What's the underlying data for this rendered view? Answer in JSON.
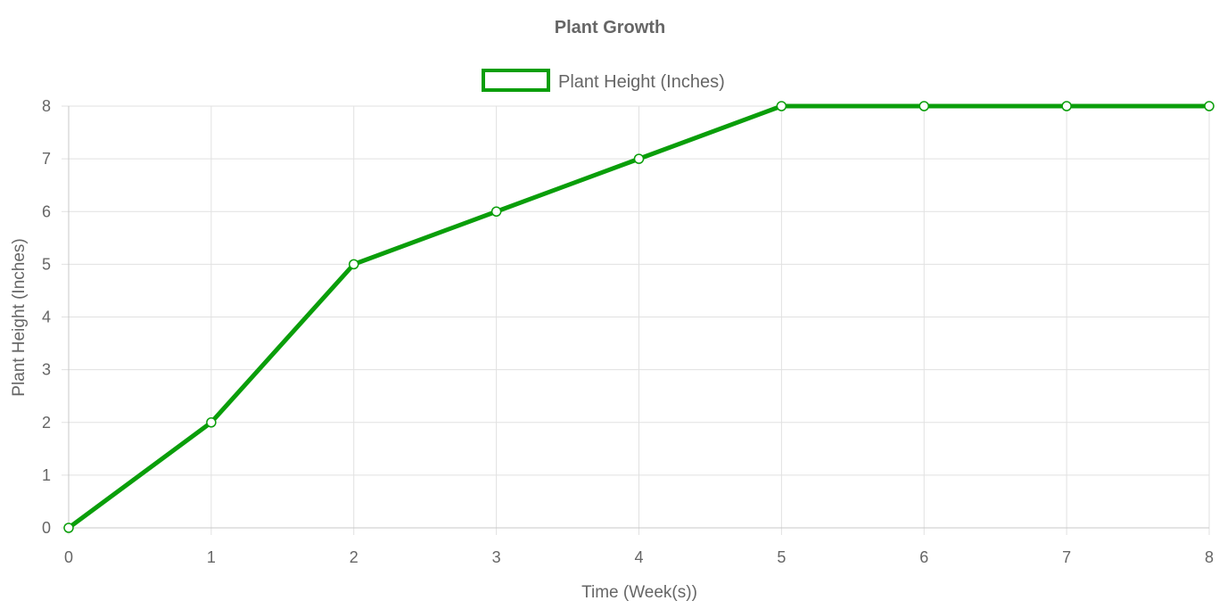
{
  "chart_data": {
    "type": "line",
    "title": "Plant Growth",
    "xlabel": "Time (Week(s))",
    "ylabel": "Plant Height (Inches)",
    "x": [
      0,
      1,
      2,
      3,
      4,
      5,
      6,
      7,
      8
    ],
    "series": [
      {
        "name": "Plant Height (Inches)",
        "values": [
          0,
          2,
          5,
          6,
          7,
          8,
          8,
          8,
          8
        ]
      }
    ],
    "xlim": [
      0,
      8
    ],
    "ylim": [
      0,
      8
    ],
    "xticks": [
      "0",
      "1",
      "2",
      "3",
      "4",
      "5",
      "6",
      "7",
      "8"
    ],
    "yticks": [
      "0",
      "1",
      "2",
      "3",
      "4",
      "5",
      "6",
      "7",
      "8"
    ],
    "grid": true,
    "legend_position": "top-center",
    "colors": {
      "series": "#0a9e0a",
      "point_fill": "#ffffff",
      "text": "#666666",
      "grid": "#e1e1e1"
    }
  }
}
